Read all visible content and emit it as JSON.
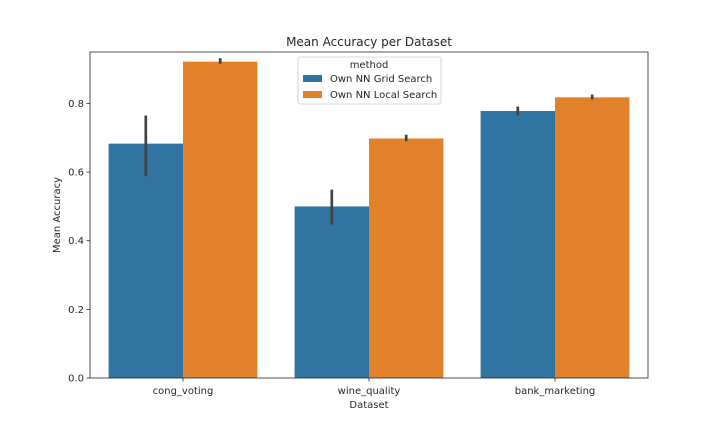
{
  "chart_data": {
    "type": "bar",
    "title": "Mean Accuracy per Dataset",
    "xlabel": "Dataset",
    "ylabel": "Mean Accuracy",
    "categories": [
      "cong_voting",
      "wine_quality",
      "bank_marketing"
    ],
    "ylim": [
      0,
      0.95
    ],
    "yticks": [
      0.0,
      0.2,
      0.4,
      0.6,
      0.8
    ],
    "ytick_labels": [
      "0.0",
      "0.2",
      "0.4",
      "0.6",
      "0.8"
    ],
    "grid": false,
    "legend": {
      "title": "method",
      "position": "top-center"
    },
    "series": [
      {
        "name": "Own NN Grid Search",
        "color": "#3274a1",
        "values": [
          0.683,
          0.5,
          0.778
        ],
        "ci_low": [
          0.588,
          0.447,
          0.765
        ],
        "ci_high": [
          0.765,
          0.549,
          0.791
        ]
      },
      {
        "name": "Own NN Local Search",
        "color": "#e1812c",
        "values": [
          0.922,
          0.698,
          0.818
        ],
        "ci_low": [
          0.916,
          0.69,
          0.812
        ],
        "ci_high": [
          0.932,
          0.709,
          0.826
        ]
      }
    ],
    "errorbar_color": "#424242"
  }
}
